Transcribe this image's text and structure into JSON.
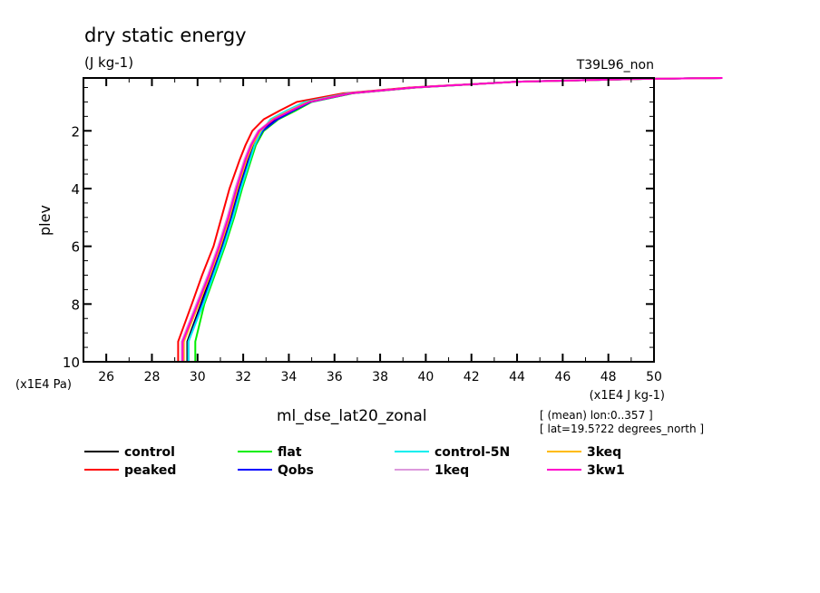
{
  "chart_data": {
    "type": "line",
    "title": "dry static energy",
    "subtitle": "(J kg-1)",
    "run_label": "T39L96_non",
    "xlabel": "ml_dse_lat20_zonal",
    "x_units": "(x1E4 J kg-1)",
    "ylabel": "plev",
    "y_units": "(x1E4 Pa)",
    "xlim": [
      25,
      50
    ],
    "ylim": [
      10,
      0.17
    ],
    "y_reversed": true,
    "x_ticks": [
      26,
      28,
      30,
      32,
      34,
      36,
      38,
      40,
      42,
      44,
      46,
      48,
      50
    ],
    "y_ticks": [
      2,
      4,
      6,
      8,
      10
    ],
    "grid": false,
    "legend_placement": "bottom",
    "notes": [
      "[ (mean) lon:0..357 ]",
      "[ lat=19.5?22 degrees_north ]"
    ],
    "levels": [
      10,
      9.3,
      8,
      7,
      6,
      5,
      4,
      3,
      2.5,
      2,
      1.6,
      1.3,
      1.0,
      0.7,
      0.5,
      0.3,
      0.2,
      0.17
    ],
    "series": [
      {
        "name": "control",
        "color": "#000000",
        "values": [
          29.55,
          29.55,
          30.15,
          30.6,
          31.05,
          31.45,
          31.8,
          32.2,
          32.45,
          32.8,
          33.45,
          34.15,
          34.95,
          36.7,
          39.5,
          44,
          49.5,
          53
        ]
      },
      {
        "name": "peaked",
        "color": "#ff0000",
        "values": [
          29.15,
          29.15,
          29.75,
          30.2,
          30.7,
          31.05,
          31.4,
          31.85,
          32.1,
          32.4,
          32.9,
          33.6,
          34.35,
          36.4,
          39.3,
          44,
          49.5,
          53
        ]
      },
      {
        "name": "flat",
        "color": "#00ee00",
        "values": [
          29.9,
          29.9,
          30.3,
          30.75,
          31.2,
          31.6,
          31.95,
          32.35,
          32.55,
          32.9,
          33.55,
          34.3,
          35.0,
          36.8,
          39.6,
          44,
          49.6,
          53
        ]
      },
      {
        "name": "Qobs",
        "color": "#0000ff",
        "values": [
          29.6,
          29.6,
          30.2,
          30.65,
          31.1,
          31.5,
          31.85,
          32.25,
          32.5,
          32.85,
          33.5,
          34.2,
          34.95,
          36.75,
          39.55,
          44,
          49.5,
          53
        ]
      },
      {
        "name": "control-5N",
        "color": "#00eeee",
        "values": [
          29.6,
          29.6,
          30.25,
          30.7,
          31.15,
          31.55,
          31.9,
          32.3,
          32.5,
          32.8,
          33.2,
          33.9,
          34.7,
          36.6,
          39.5,
          44,
          49.5,
          53
        ]
      },
      {
        "name": "1keq",
        "color": "#dd99dd",
        "values": [
          29.3,
          29.3,
          29.95,
          30.45,
          30.9,
          31.3,
          31.65,
          32.05,
          32.3,
          32.65,
          33.3,
          34.0,
          34.85,
          36.7,
          39.5,
          44,
          49.5,
          53
        ]
      },
      {
        "name": "3keq",
        "color": "#ffbb00",
        "values": [
          29.4,
          29.4,
          30.05,
          30.55,
          31.0,
          31.4,
          31.75,
          32.15,
          32.4,
          32.75,
          33.3,
          34.05,
          34.85,
          36.7,
          39.5,
          44,
          49.5,
          53
        ]
      },
      {
        "name": "3kw1",
        "color": "#ff00cc",
        "values": [
          29.35,
          29.35,
          30.0,
          30.5,
          30.95,
          31.35,
          31.7,
          32.1,
          32.35,
          32.7,
          33.35,
          34.1,
          34.9,
          36.7,
          39.5,
          44,
          49.5,
          53
        ]
      }
    ]
  }
}
